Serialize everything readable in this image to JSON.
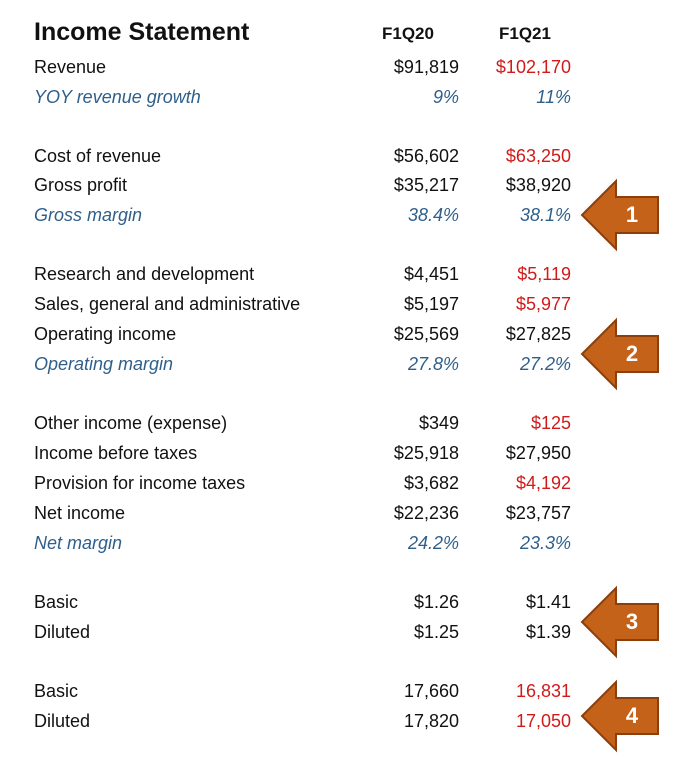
{
  "header": {
    "title": "Income Statement",
    "col1": "F1Q20",
    "col2": "F1Q21"
  },
  "rows": [
    {
      "label": "Revenue",
      "v1": "$91,819",
      "v2": "$102,170"
    },
    {
      "label": "YOY revenue growth",
      "v1": "9%",
      "v2": "11%"
    },
    {
      "label": "Cost of revenue",
      "v1": "$56,602",
      "v2": "$63,250"
    },
    {
      "label": "Gross profit",
      "v1": "$35,217",
      "v2": "$38,920"
    },
    {
      "label": "Gross margin",
      "v1": "38.4%",
      "v2": "38.1%"
    },
    {
      "label": "Research and development",
      "v1": "$4,451",
      "v2": "$5,119"
    },
    {
      "label": "Sales, general and administrative",
      "v1": "$5,197",
      "v2": "$5,977"
    },
    {
      "label": "Operating income",
      "v1": "$25,569",
      "v2": "$27,825"
    },
    {
      "label": "Operating margin",
      "v1": "27.8%",
      "v2": "27.2%"
    },
    {
      "label": "Other income (expense)",
      "v1": "$349",
      "v2": "$125"
    },
    {
      "label": "Income before taxes",
      "v1": "$25,918",
      "v2": "$27,950"
    },
    {
      "label": "Provision for income taxes",
      "v1": "$3,682",
      "v2": "$4,192"
    },
    {
      "label": "Net income",
      "v1": "$22,236",
      "v2": "$23,757"
    },
    {
      "label": "Net margin",
      "v1": "24.2%",
      "v2": "23.3%"
    },
    {
      "label": "Basic",
      "v1": "$1.26",
      "v2": "$1.41"
    },
    {
      "label": "Diluted",
      "v1": "$1.25",
      "v2": "$1.39"
    },
    {
      "label": "Basic",
      "v1": "17,660",
      "v2": "16,831"
    },
    {
      "label": "Diluted",
      "v1": "17,820",
      "v2": "17,050"
    }
  ],
  "callouts": [
    "1",
    "2",
    "3",
    "4"
  ],
  "colors": {
    "text": "#111111",
    "italic_blue": "#2f5f8a",
    "highlight_red": "#d11a1a",
    "arrow_fill": "#c5621a",
    "arrow_stroke": "#8a3f0c"
  }
}
